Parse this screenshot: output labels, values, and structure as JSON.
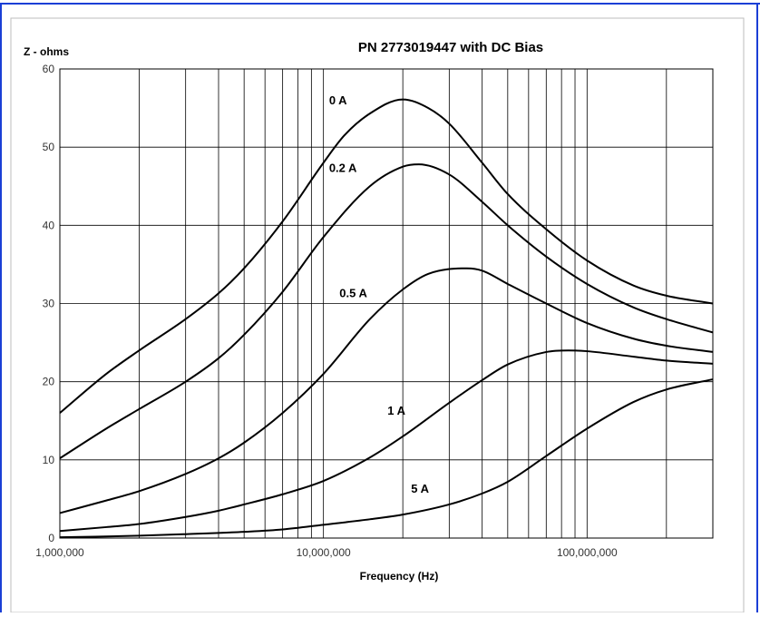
{
  "chart_data": {
    "type": "line",
    "title": "PN 2773019447 with DC Bias",
    "ylabel": "Z - ohms",
    "xlabel": "Frequency (Hz)",
    "xscale": "log",
    "xlim": [
      1000000,
      300000000
    ],
    "ylim": [
      0,
      60
    ],
    "grid": true,
    "legend": "none",
    "colors": {
      "frame": "#1a3fd6",
      "line": "#000000",
      "grid": "#000000"
    },
    "x_ticks": [
      {
        "value": 1000000,
        "label": "1,000,000"
      },
      {
        "value": 10000000,
        "label": "10,000,000"
      },
      {
        "value": 100000000,
        "label": "100,000,000"
      }
    ],
    "y_ticks": [
      {
        "value": 0,
        "label": "0"
      },
      {
        "value": 10,
        "label": "10"
      },
      {
        "value": 20,
        "label": "20"
      },
      {
        "value": 30,
        "label": "30"
      },
      {
        "value": 40,
        "label": "40"
      },
      {
        "value": 50,
        "label": "50"
      },
      {
        "value": 60,
        "label": "60"
      }
    ],
    "x_minor_grid": [
      2000000,
      3000000,
      4000000,
      5000000,
      6000000,
      7000000,
      8000000,
      9000000,
      20000000,
      30000000,
      40000000,
      50000000,
      60000000,
      70000000,
      80000000,
      90000000,
      200000000
    ],
    "series": [
      {
        "name": "0 A",
        "label_at": {
          "x": 10500000,
          "y": 55.5
        },
        "points": [
          [
            1000000,
            16
          ],
          [
            1500000,
            21
          ],
          [
            2000000,
            24
          ],
          [
            3000000,
            28
          ],
          [
            4000000,
            31.3
          ],
          [
            5000000,
            34.5
          ],
          [
            7000000,
            40.5
          ],
          [
            10000000,
            48
          ],
          [
            12000000,
            51.5
          ],
          [
            15000000,
            54.3
          ],
          [
            20000000,
            56.1
          ],
          [
            25000000,
            55
          ],
          [
            30000000,
            53
          ],
          [
            40000000,
            48
          ],
          [
            50000000,
            44
          ],
          [
            70000000,
            39.5
          ],
          [
            100000000,
            35.5
          ],
          [
            150000000,
            32.3
          ],
          [
            200000000,
            31
          ],
          [
            300000000,
            30
          ]
        ]
      },
      {
        "name": "0.2 A",
        "label_at": {
          "x": 10500000,
          "y": 46.8
        },
        "points": [
          [
            1000000,
            10.2
          ],
          [
            1500000,
            14
          ],
          [
            2000000,
            16.5
          ],
          [
            3000000,
            20
          ],
          [
            4000000,
            23
          ],
          [
            5000000,
            26
          ],
          [
            7000000,
            31.5
          ],
          [
            10000000,
            38.5
          ],
          [
            15000000,
            45
          ],
          [
            20000000,
            47.5
          ],
          [
            23000000,
            47.8
          ],
          [
            30000000,
            46.5
          ],
          [
            40000000,
            43
          ],
          [
            50000000,
            40
          ],
          [
            70000000,
            36
          ],
          [
            100000000,
            32.5
          ],
          [
            150000000,
            29.5
          ],
          [
            200000000,
            28
          ],
          [
            300000000,
            26.3
          ]
        ]
      },
      {
        "name": "0.5 A",
        "label_at": {
          "x": 11500000,
          "y": 30.8
        },
        "points": [
          [
            1000000,
            3.2
          ],
          [
            1500000,
            4.8
          ],
          [
            2000000,
            6
          ],
          [
            3000000,
            8.2
          ],
          [
            4000000,
            10.2
          ],
          [
            5000000,
            12.2
          ],
          [
            7000000,
            16
          ],
          [
            10000000,
            21
          ],
          [
            15000000,
            28
          ],
          [
            20000000,
            31.8
          ],
          [
            25000000,
            33.8
          ],
          [
            35000000,
            34.5
          ],
          [
            40000000,
            34.2
          ],
          [
            50000000,
            32.5
          ],
          [
            70000000,
            30
          ],
          [
            100000000,
            27.5
          ],
          [
            150000000,
            25.5
          ],
          [
            200000000,
            24.6
          ],
          [
            300000000,
            23.8
          ]
        ]
      },
      {
        "name": "1 A",
        "label_at": {
          "x": 17500000,
          "y": 15.8
        },
        "points": [
          [
            1000000,
            0.9
          ],
          [
            1500000,
            1.4
          ],
          [
            2000000,
            1.8
          ],
          [
            3000000,
            2.7
          ],
          [
            4000000,
            3.5
          ],
          [
            5000000,
            4.3
          ],
          [
            7000000,
            5.6
          ],
          [
            10000000,
            7.3
          ],
          [
            15000000,
            10.3
          ],
          [
            20000000,
            13
          ],
          [
            30000000,
            17.3
          ],
          [
            40000000,
            20.2
          ],
          [
            50000000,
            22.2
          ],
          [
            70000000,
            23.8
          ],
          [
            85000000,
            24
          ],
          [
            100000000,
            23.9
          ],
          [
            150000000,
            23.2
          ],
          [
            200000000,
            22.7
          ],
          [
            300000000,
            22.3
          ]
        ]
      },
      {
        "name": "5 A",
        "label_at": {
          "x": 21500000,
          "y": 5.8
        },
        "points": [
          [
            1000000,
            0.1
          ],
          [
            2000000,
            0.3
          ],
          [
            3000000,
            0.5
          ],
          [
            5000000,
            0.8
          ],
          [
            7000000,
            1.1
          ],
          [
            10000000,
            1.7
          ],
          [
            15000000,
            2.4
          ],
          [
            20000000,
            3
          ],
          [
            30000000,
            4.3
          ],
          [
            40000000,
            5.7
          ],
          [
            50000000,
            7.2
          ],
          [
            70000000,
            10.5
          ],
          [
            100000000,
            14
          ],
          [
            150000000,
            17.4
          ],
          [
            200000000,
            19
          ],
          [
            300000000,
            20.3
          ]
        ]
      }
    ]
  }
}
